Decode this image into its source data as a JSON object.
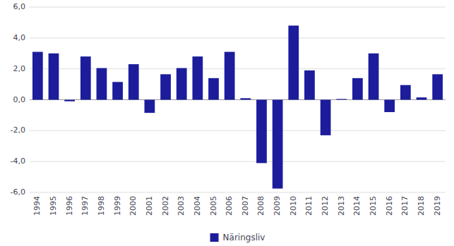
{
  "chart_data": {
    "type": "bar",
    "categories": [
      "1994",
      "1995",
      "1996",
      "1997",
      "1998",
      "1999",
      "2000",
      "2001",
      "2002",
      "2003",
      "2004",
      "2005",
      "2006",
      "2007",
      "2008",
      "2009",
      "2010",
      "2011",
      "2012",
      "2013",
      "2014",
      "2015",
      "2016",
      "2017",
      "2018",
      "2019"
    ],
    "series": [
      {
        "name": "Näringsliv",
        "color": "#1c1c9c",
        "values": [
          3.1,
          3.0,
          -0.1,
          2.8,
          2.05,
          1.15,
          2.3,
          -0.85,
          1.65,
          2.05,
          2.8,
          1.4,
          3.1,
          0.1,
          -4.1,
          -5.75,
          4.8,
          1.9,
          -2.3,
          0.05,
          1.4,
          3.0,
          -0.8,
          0.95,
          0.15,
          1.65
        ]
      }
    ],
    "ylim": [
      -6.0,
      6.0
    ],
    "yticks": [
      {
        "value": -6.0,
        "label": "-6,0"
      },
      {
        "value": -4.0,
        "label": "-4,0"
      },
      {
        "value": -2.0,
        "label": "-2,0"
      },
      {
        "value": 0.0,
        "label": "0,0"
      },
      {
        "value": 2.0,
        "label": "2,0"
      },
      {
        "value": 4.0,
        "label": "4,0"
      },
      {
        "value": 6.0,
        "label": "6,0"
      }
    ],
    "grid": true,
    "legend": "bottom"
  }
}
